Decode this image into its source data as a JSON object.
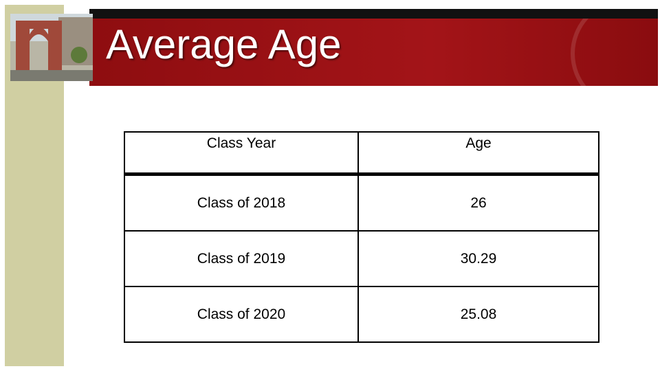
{
  "header": {
    "title": "Average Age"
  },
  "table": {
    "columns": [
      "Class Year",
      "Age"
    ],
    "rows": [
      [
        "Class of 2018",
        "26"
      ],
      [
        "Class of 2019",
        "30.29"
      ],
      [
        "Class of 2020",
        "25.08"
      ]
    ]
  }
}
